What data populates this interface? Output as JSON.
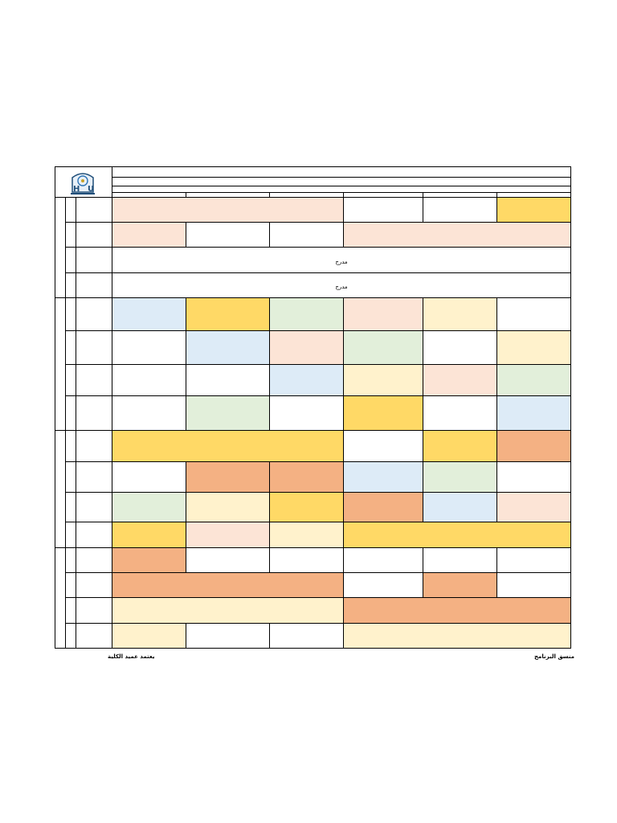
{
  "palette": {
    "white": "#ffffff",
    "peach": "#fce4d6",
    "yellow": "#ffd966",
    "blue": "#ddebf7",
    "green": "#e2efda",
    "cream": "#fff2cc",
    "orange": "#f4b183"
  },
  "logo": {
    "icon": "university-logo-icon",
    "letters": [
      "H",
      "U"
    ]
  },
  "blocks": [
    {
      "rows": [
        {
          "cells": [
            {
              "span": 3,
              "color": "peach"
            },
            {
              "span": 1,
              "color": "white"
            },
            {
              "span": 1,
              "color": "white"
            },
            {
              "span": 1,
              "color": "yellow"
            }
          ]
        },
        {
          "cells": [
            {
              "span": 1,
              "color": "peach"
            },
            {
              "span": 1,
              "color": "white"
            },
            {
              "span": 1,
              "color": "white"
            },
            {
              "span": 3,
              "color": "peach"
            }
          ]
        },
        {
          "cells": [
            {
              "span": 6,
              "color": "white",
              "text": "مدرج"
            }
          ]
        },
        {
          "cells": [
            {
              "span": 6,
              "color": "white",
              "text": "مدرج"
            }
          ]
        }
      ]
    },
    {
      "rows": [
        {
          "cells": [
            {
              "span": 1,
              "color": "blue"
            },
            {
              "span": 1,
              "color": "yellow"
            },
            {
              "span": 1,
              "color": "green"
            },
            {
              "span": 1,
              "color": "peach"
            },
            {
              "span": 1,
              "color": "cream"
            },
            {
              "span": 1,
              "color": "white"
            }
          ]
        },
        {
          "cells": [
            {
              "span": 1,
              "color": "white"
            },
            {
              "span": 1,
              "color": "blue"
            },
            {
              "span": 1,
              "color": "peach"
            },
            {
              "span": 1,
              "color": "green"
            },
            {
              "span": 1,
              "color": "white"
            },
            {
              "span": 1,
              "color": "cream"
            }
          ]
        },
        {
          "cells": [
            {
              "span": 1,
              "color": "white"
            },
            {
              "span": 1,
              "color": "white"
            },
            {
              "span": 1,
              "color": "blue"
            },
            {
              "span": 1,
              "color": "cream"
            },
            {
              "span": 1,
              "color": "peach"
            },
            {
              "span": 1,
              "color": "green"
            }
          ]
        },
        {
          "cells": [
            {
              "span": 1,
              "color": "white"
            },
            {
              "span": 1,
              "color": "green"
            },
            {
              "span": 1,
              "color": "white"
            },
            {
              "span": 1,
              "color": "yellow"
            },
            {
              "span": 1,
              "color": "white"
            },
            {
              "span": 1,
              "color": "blue"
            }
          ]
        }
      ]
    },
    {
      "rows": [
        {
          "cells": [
            {
              "span": 3,
              "color": "yellow"
            },
            {
              "span": 1,
              "color": "white"
            },
            {
              "span": 1,
              "color": "yellow"
            },
            {
              "span": 1,
              "color": "orange"
            }
          ]
        },
        {
          "cells": [
            {
              "span": 1,
              "color": "white"
            },
            {
              "span": 1,
              "color": "orange"
            },
            {
              "span": 1,
              "color": "orange"
            },
            {
              "span": 1,
              "color": "blue"
            },
            {
              "span": 1,
              "color": "green"
            },
            {
              "span": 1,
              "color": "white"
            }
          ]
        },
        {
          "cells": [
            {
              "span": 1,
              "color": "green"
            },
            {
              "span": 1,
              "color": "cream"
            },
            {
              "span": 1,
              "color": "yellow"
            },
            {
              "span": 1,
              "color": "orange"
            },
            {
              "span": 1,
              "color": "blue"
            },
            {
              "span": 1,
              "color": "peach"
            }
          ]
        },
        {
          "cells": [
            {
              "span": 1,
              "color": "yellow"
            },
            {
              "span": 1,
              "color": "peach"
            },
            {
              "span": 1,
              "color": "cream"
            },
            {
              "span": 3,
              "color": "yellow"
            }
          ]
        }
      ]
    },
    {
      "rows": [
        {
          "cells": [
            {
              "span": 1,
              "color": "orange"
            },
            {
              "span": 1,
              "color": "white"
            },
            {
              "span": 1,
              "color": "white"
            },
            {
              "span": 1,
              "color": "white"
            },
            {
              "span": 1,
              "color": "white"
            },
            {
              "span": 1,
              "color": "white"
            }
          ]
        },
        {
          "cells": [
            {
              "span": 3,
              "color": "orange"
            },
            {
              "span": 1,
              "color": "white"
            },
            {
              "span": 1,
              "color": "orange"
            },
            {
              "span": 1,
              "color": "white"
            }
          ]
        },
        {
          "cells": [
            {
              "span": 3,
              "color": "cream"
            },
            {
              "span": 3,
              "color": "orange"
            }
          ]
        },
        {
          "cells": [
            {
              "span": 1,
              "color": "cream"
            },
            {
              "span": 1,
              "color": "white"
            },
            {
              "span": 1,
              "color": "white"
            },
            {
              "span": 3,
              "color": "cream"
            }
          ]
        }
      ]
    }
  ],
  "footer": {
    "left_signature": "يعتمد عميد الكلية",
    "right_signature": "منسق البرنامج"
  }
}
